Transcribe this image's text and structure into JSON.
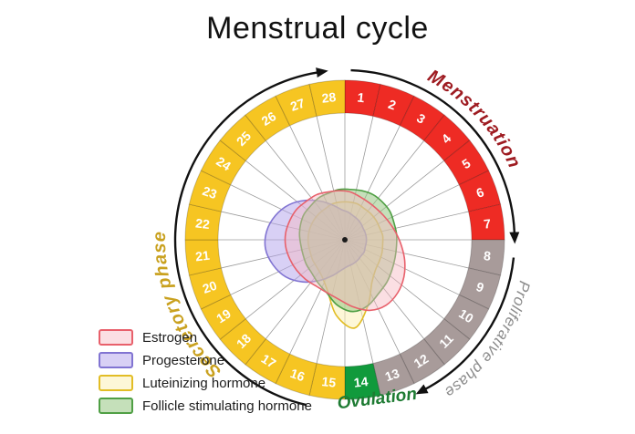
{
  "title": "Menstrual cycle",
  "background": "#ffffff",
  "wheel": {
    "days_total": 28,
    "direction": "clockwise",
    "arrow_color": "#111111",
    "phases": [
      {
        "name": "Menstruation",
        "day_start": 1,
        "day_end": 7,
        "segment_color": "#ee2b24",
        "label_color": "#9e1b21"
      },
      {
        "name": "Proliferative phase",
        "day_start": 8,
        "day_end": 13,
        "segment_color": "#a89b9a",
        "label_color": "#8c8c8c"
      },
      {
        "name": "Ovulation",
        "day_start": 14,
        "day_end": 14,
        "segment_color": "#119a3c",
        "label_color": "#1e7b33"
      },
      {
        "name": "Secretory phase",
        "day_start": 15,
        "day_end": 28,
        "segment_color": "#f6c522",
        "label_color": "#c9a11f"
      }
    ],
    "day_number_color": "#ffffff"
  },
  "chart_data": {
    "type": "polar-area",
    "title": "Menstrual cycle",
    "angle_unit": "cycle day (day 1 at top, clockwise)",
    "categories": [
      1,
      2,
      3,
      4,
      5,
      6,
      7,
      8,
      9,
      10,
      11,
      12,
      13,
      14,
      15,
      16,
      17,
      18,
      19,
      20,
      21,
      22,
      23,
      24,
      25,
      26,
      27,
      28
    ],
    "value_note": "relative hormone level, fraction of inner wheel radius (estimated from figure)",
    "legend_position": "bottom-left",
    "series": [
      {
        "name": "Estrogen",
        "stroke": "#e8606b",
        "fill": "rgba(246,183,193,0.45)",
        "values": [
          0.38,
          0.36,
          0.35,
          0.35,
          0.36,
          0.38,
          0.41,
          0.45,
          0.5,
          0.55,
          0.59,
          0.61,
          0.59,
          0.53,
          0.47,
          0.44,
          0.43,
          0.44,
          0.45,
          0.46,
          0.47,
          0.47,
          0.46,
          0.45,
          0.43,
          0.42,
          0.4,
          0.39
        ]
      },
      {
        "name": "Progesterone",
        "stroke": "#8174d2",
        "fill": "rgba(178,162,236,0.50)",
        "values": [
          0.22,
          0.2,
          0.19,
          0.18,
          0.17,
          0.17,
          0.17,
          0.17,
          0.17,
          0.18,
          0.18,
          0.19,
          0.2,
          0.21,
          0.24,
          0.3,
          0.38,
          0.47,
          0.55,
          0.6,
          0.63,
          0.62,
          0.58,
          0.52,
          0.44,
          0.36,
          0.29,
          0.24
        ]
      },
      {
        "name": "Luteinizing hormone",
        "stroke": "#e2bd25",
        "fill": "rgba(251,240,183,0.55)",
        "values": [
          0.3,
          0.3,
          0.29,
          0.29,
          0.29,
          0.29,
          0.3,
          0.3,
          0.31,
          0.32,
          0.34,
          0.4,
          0.55,
          0.7,
          0.6,
          0.42,
          0.34,
          0.31,
          0.3,
          0.29,
          0.29,
          0.29,
          0.29,
          0.29,
          0.29,
          0.29,
          0.3,
          0.3
        ]
      },
      {
        "name": "Follicle stimulating hormone",
        "stroke": "#4f9f44",
        "fill": "rgba(150,199,130,0.55)",
        "values": [
          0.4,
          0.41,
          0.42,
          0.42,
          0.42,
          0.41,
          0.41,
          0.41,
          0.42,
          0.44,
          0.47,
          0.5,
          0.55,
          0.57,
          0.52,
          0.44,
          0.4,
          0.37,
          0.36,
          0.35,
          0.35,
          0.36,
          0.37,
          0.38,
          0.38,
          0.39,
          0.39,
          0.4
        ]
      }
    ]
  }
}
